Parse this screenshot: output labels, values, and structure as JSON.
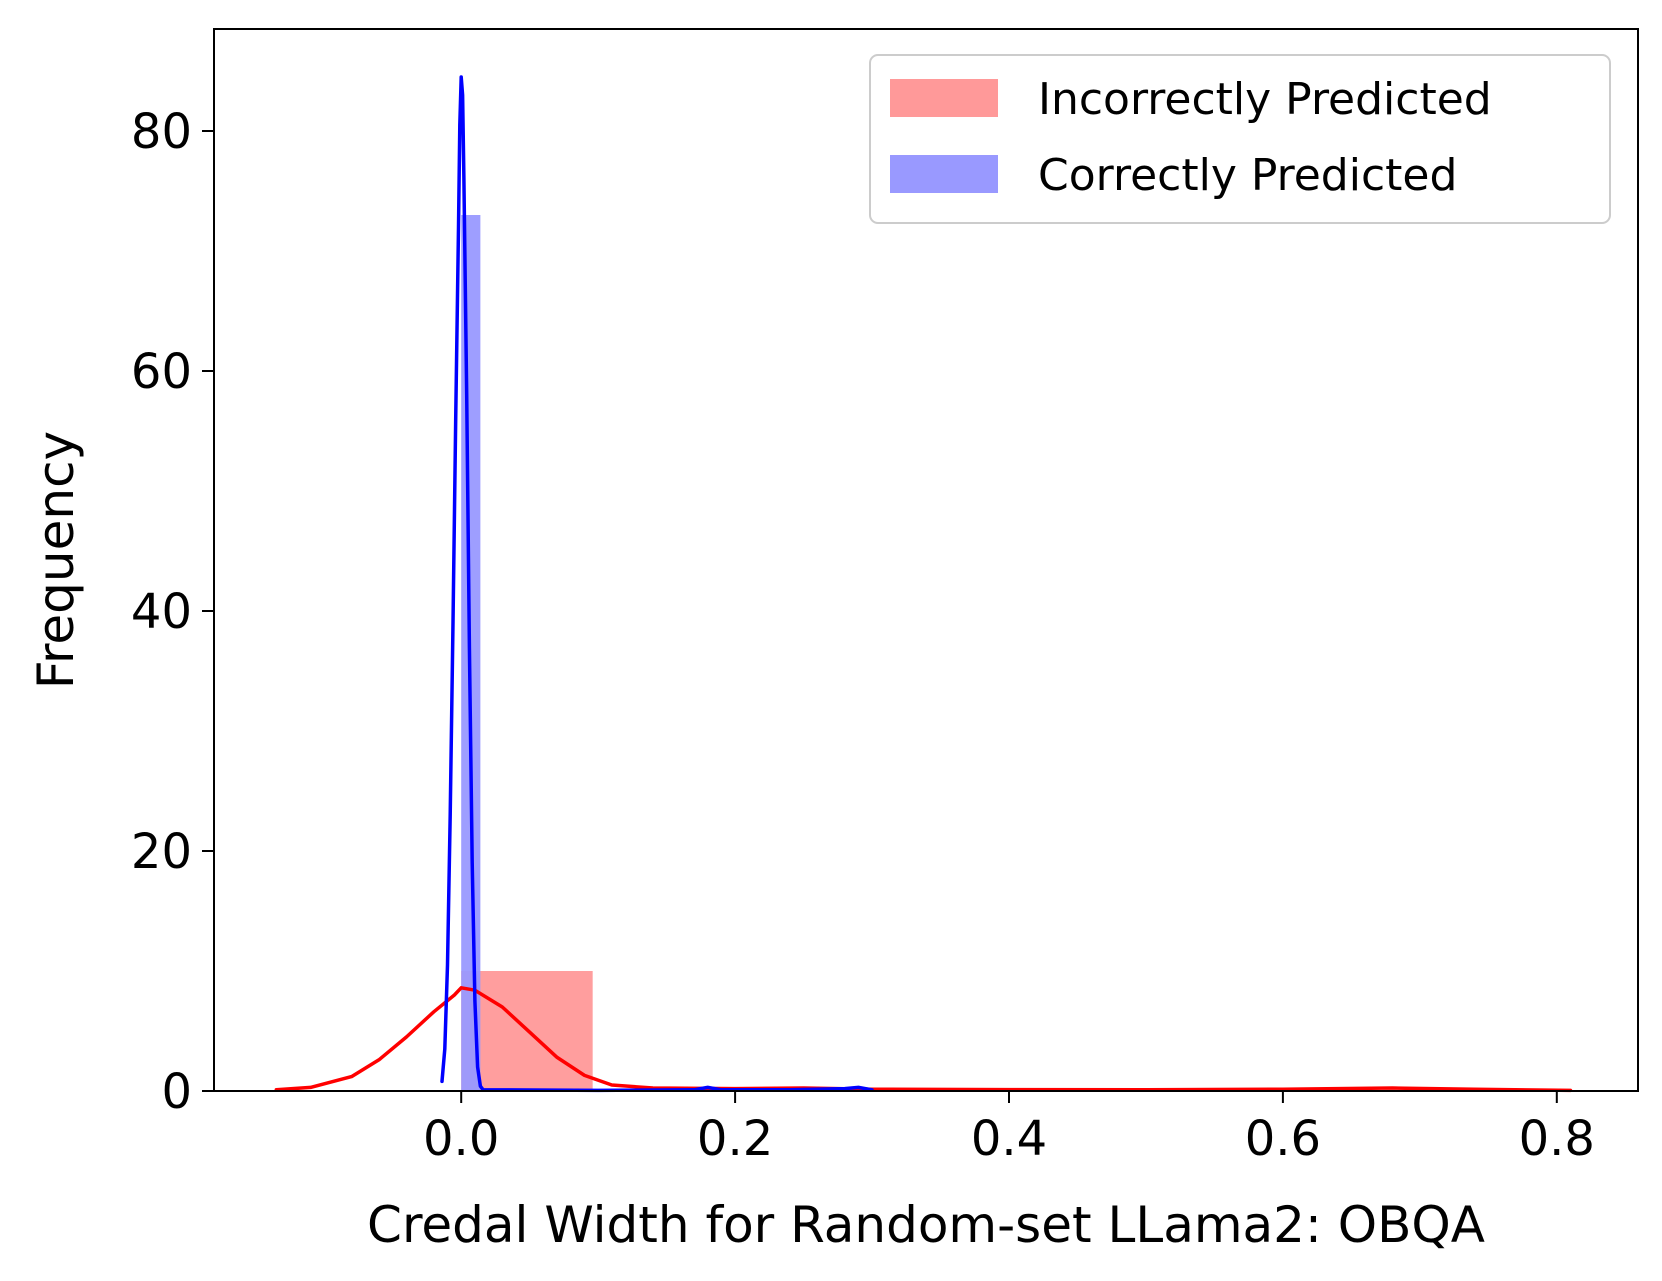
{
  "chart_data": {
    "type": "bar",
    "xlabel": "Credal Width for Random-set LLama2: OBQA",
    "ylabel": "Frequency",
    "xlim": [
      -0.18,
      0.86
    ],
    "ylim": [
      0,
      88.5
    ],
    "x_ticks": [
      "0.0",
      "0.2",
      "0.4",
      "0.6",
      "0.8"
    ],
    "x_tick_values": [
      0.0,
      0.2,
      0.4,
      0.6,
      0.8
    ],
    "y_ticks": [
      "0",
      "20",
      "40",
      "60",
      "80"
    ],
    "y_tick_values": [
      0,
      20,
      40,
      60,
      80
    ],
    "legend_position": "top-right",
    "series": [
      {
        "name": "Incorrectly Predicted",
        "color": "#ff9999",
        "kde_color": "#ff0000",
        "bins": [
          {
            "x0": 0.0,
            "x1": 0.096,
            "count": 10
          }
        ],
        "kde": [
          [
            -0.135,
            0.1
          ],
          [
            -0.11,
            0.3
          ],
          [
            -0.08,
            1.2
          ],
          [
            -0.06,
            2.6
          ],
          [
            -0.04,
            4.5
          ],
          [
            -0.02,
            6.6
          ],
          [
            -0.005,
            8.0
          ],
          [
            0.0,
            8.6
          ],
          [
            0.01,
            8.4
          ],
          [
            0.03,
            7.0
          ],
          [
            0.05,
            4.9
          ],
          [
            0.07,
            2.8
          ],
          [
            0.09,
            1.3
          ],
          [
            0.11,
            0.5
          ],
          [
            0.14,
            0.25
          ],
          [
            0.2,
            0.2
          ],
          [
            0.25,
            0.25
          ],
          [
            0.3,
            0.15
          ],
          [
            0.4,
            0.12
          ],
          [
            0.5,
            0.1
          ],
          [
            0.6,
            0.15
          ],
          [
            0.68,
            0.25
          ],
          [
            0.74,
            0.15
          ],
          [
            0.81,
            0.05
          ]
        ]
      },
      {
        "name": "Correctly Predicted",
        "color": "#9999ff",
        "kde_color": "#0000ff",
        "bins": [
          {
            "x0": 0.0,
            "x1": 0.014,
            "count": 73
          }
        ],
        "kde": [
          [
            -0.014,
            0.8
          ],
          [
            -0.012,
            3.5
          ],
          [
            -0.01,
            10.5
          ],
          [
            -0.008,
            23.0
          ],
          [
            -0.006,
            39.0
          ],
          [
            -0.004,
            56.0
          ],
          [
            -0.002,
            72.0
          ],
          [
            -0.001,
            80.5
          ],
          [
            0.0,
            84.5
          ],
          [
            0.001,
            83.0
          ],
          [
            0.002,
            76.0
          ],
          [
            0.004,
            58.0
          ],
          [
            0.006,
            37.0
          ],
          [
            0.008,
            19.0
          ],
          [
            0.01,
            7.5
          ],
          [
            0.012,
            2.0
          ],
          [
            0.014,
            0.4
          ],
          [
            0.016,
            0.1
          ],
          [
            0.1,
            0.05
          ],
          [
            0.17,
            0.1
          ],
          [
            0.18,
            0.3
          ],
          [
            0.19,
            0.1
          ],
          [
            0.24,
            0.1
          ],
          [
            0.28,
            0.2
          ],
          [
            0.29,
            0.3
          ],
          [
            0.3,
            0.1
          ]
        ]
      }
    ]
  }
}
